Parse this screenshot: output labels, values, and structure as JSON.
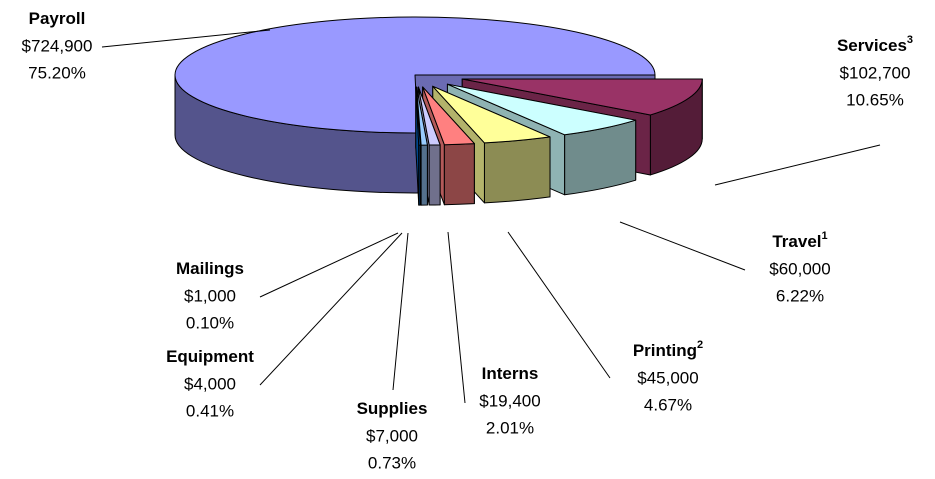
{
  "chart_data": {
    "type": "pie",
    "categories": [
      "Payroll",
      "Services",
      "Travel",
      "Printing",
      "Interns",
      "Supplies",
      "Equipment",
      "Mailings"
    ],
    "category_notes": [
      null,
      "3",
      "1",
      "2",
      null,
      null,
      null,
      null
    ],
    "values": [
      724900,
      102700,
      60000,
      45000,
      19400,
      7000,
      4000,
      1000
    ],
    "value_labels": [
      "$724,900",
      "$102,700",
      "$60,000",
      "$45,000",
      "$19,400",
      "$7,000",
      "$4,000",
      "$1,000"
    ],
    "percents": [
      75.2,
      10.65,
      6.22,
      4.67,
      2.01,
      0.73,
      0.41,
      0.1
    ],
    "percent_labels": [
      "75.20%",
      "10.65%",
      "6.22%",
      "4.67%",
      "2.01%",
      "0.73%",
      "0.41%",
      "0.10%"
    ],
    "colors": [
      "#9999ff",
      "#993366",
      "#ccffff",
      "#ffff99",
      "#ff8080",
      "#ccccff",
      "#99ccff",
      "#0066cc"
    ]
  }
}
